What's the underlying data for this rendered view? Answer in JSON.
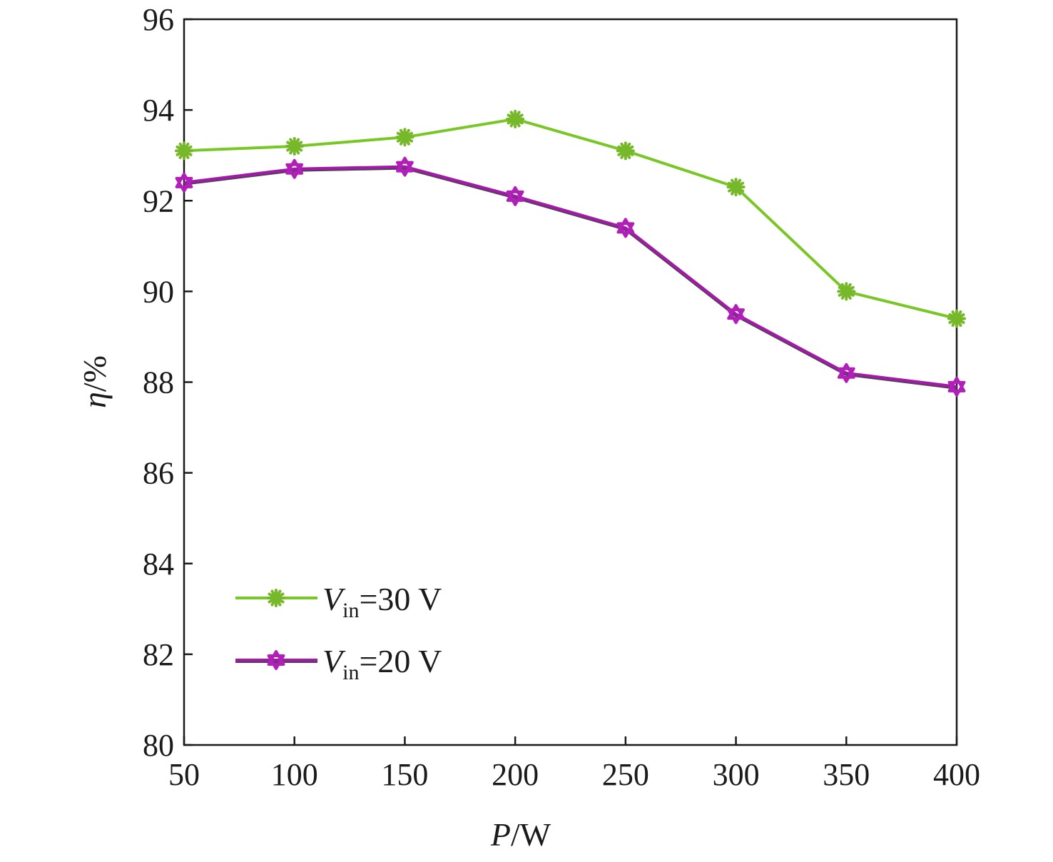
{
  "chart_data": {
    "type": "line",
    "x": [
      50,
      100,
      150,
      200,
      250,
      300,
      350,
      400
    ],
    "xlim": [
      50,
      400
    ],
    "ylim": [
      80,
      96
    ],
    "xticks": [
      "50",
      "100",
      "150",
      "200",
      "250",
      "300",
      "350",
      "400"
    ],
    "yticks": [
      "80",
      "82",
      "84",
      "86",
      "88",
      "90",
      "92",
      "94",
      "96"
    ],
    "xlabel": {
      "var": "P",
      "unit": "/W"
    },
    "ylabel": {
      "var": "η",
      "unit": "/%"
    },
    "legend_position": "lower-left",
    "grid": false,
    "series": [
      {
        "name_main": "V",
        "name_sub": "in",
        "name_rest": "=30 V",
        "values": [
          93.1,
          93.2,
          93.4,
          93.8,
          93.1,
          92.3,
          90.0,
          89.4
        ],
        "line_color": "#79c726",
        "marker_color": "#76b82a",
        "marker": "asterisk"
      },
      {
        "name_main": "V",
        "name_sub": "in",
        "name_rest": "=20 V",
        "values": [
          92.4,
          92.7,
          92.75,
          92.1,
          91.4,
          89.5,
          88.2,
          87.9
        ],
        "line_color": "#a21ba8",
        "line_shadow": "#5a3d5e",
        "marker_color": "#b020b8",
        "marker": "hexagram"
      }
    ]
  }
}
